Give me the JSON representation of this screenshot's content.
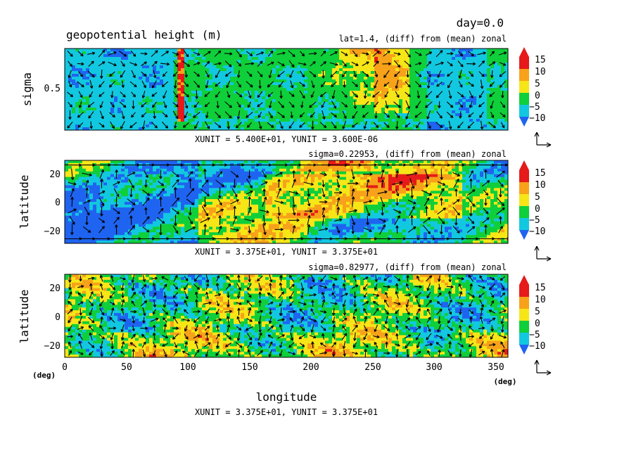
{
  "figure": {
    "day_label": "day=0.0",
    "title": "geopotential height (m)",
    "xaxis": {
      "label": "longitude",
      "unit": "(deg)",
      "ticks": [
        "0",
        "50",
        "100",
        "150",
        "200",
        "250",
        "300",
        "350"
      ]
    },
    "bottom_note": "XUNIT = 3.375E+01, YUNIT = 3.375E+01"
  },
  "colors": {
    "levels": [
      "#1f64f0",
      "#12c8e0",
      "#0fcf3a",
      "#f7e617",
      "#f7a21a",
      "#e61a1a"
    ],
    "legend_labels": [
      "15",
      "10",
      "5",
      "0",
      "−5",
      "−10"
    ]
  },
  "chart_data": [
    {
      "type": "heatmap",
      "subtitle": "lat=1.4, (diff) from (mean) zonal",
      "xlabel": "",
      "ylabel": "sigma",
      "xlim": [
        0,
        360
      ],
      "ylim": [
        0,
        1
      ],
      "yticks": [
        "0.5"
      ],
      "unit_note": "XUNIT = 5.400E+01, YUNIT = 3.600E-06",
      "levels": [
        -10,
        -5,
        0,
        5,
        10,
        15
      ],
      "vectors": true
    },
    {
      "type": "heatmap",
      "subtitle": "sigma=0.22953, (diff) from (mean) zonal",
      "xlabel": "",
      "ylabel": "latitude",
      "xlim": [
        0,
        360
      ],
      "ylim": [
        -30,
        30
      ],
      "yticks": [
        "20",
        "0",
        "−20"
      ],
      "unit_note": "XUNIT = 3.375E+01, YUNIT = 3.375E+01",
      "levels": [
        -10,
        -5,
        0,
        5,
        10,
        15
      ],
      "vectors": true
    },
    {
      "type": "heatmap",
      "subtitle": "sigma=0.82977, (diff) from (mean) zonal",
      "xlabel": "longitude",
      "ylabel": "latitude",
      "xlim": [
        0,
        360
      ],
      "ylim": [
        -30,
        30
      ],
      "yticks": [
        "20",
        "0",
        "−20"
      ],
      "ytick_unit": "(deg)",
      "unit_note": "",
      "levels": [
        -10,
        -5,
        0,
        5,
        10,
        15
      ],
      "vectors": true
    }
  ]
}
